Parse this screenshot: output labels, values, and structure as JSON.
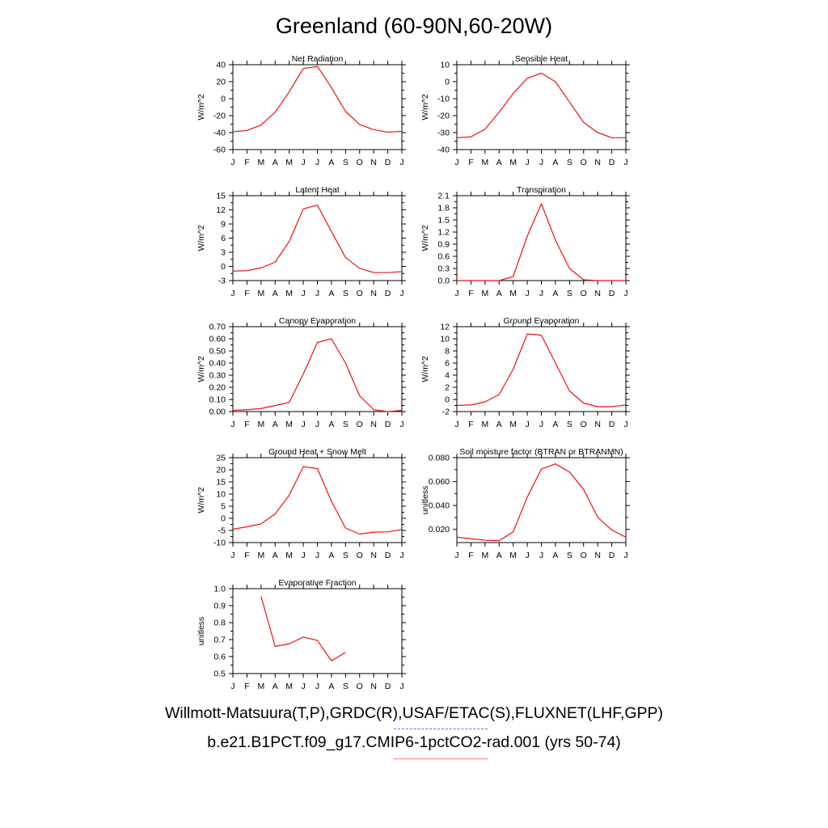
{
  "title": "Greenland (60-90N,60-20W)",
  "legend": {
    "observed": {
      "label": "Willmott-Matsuura(T,P),GRDC(R),USAF/ETAC(S),FLUXNET(LHF,GPP)",
      "color": "#5b5bea",
      "style": "dashed"
    },
    "model": {
      "label": "b.e21.B1PCT.f09_g17.CMIP6-1pctCO2-rad.001 (yrs 50-74)",
      "color": "#ee1111",
      "style": "solid"
    }
  },
  "chart_data": [
    {
      "type": "line",
      "title": "Net Radiation",
      "ylabel": "W/m^2",
      "ylim": [
        -60,
        40
      ],
      "yticks": [
        "40",
        "20",
        "0",
        "-20",
        "-40",
        "-60"
      ],
      "categories": [
        "J",
        "F",
        "M",
        "A",
        "M",
        "J",
        "J",
        "A",
        "S",
        "O",
        "N",
        "D",
        "J"
      ],
      "series": [
        {
          "values": [
            -39,
            -37.5,
            -31,
            -16,
            8,
            35.5,
            38,
            13,
            -15,
            -30.5,
            -36.5,
            -39.5,
            -38.5
          ],
          "color": "#ee1111"
        }
      ]
    },
    {
      "type": "line",
      "title": "Sensible Heat",
      "ylabel": "W/m^2",
      "ylim": [
        -40,
        10
      ],
      "yticks": [
        "10",
        "0",
        "-10",
        "-20",
        "-30",
        "-40"
      ],
      "categories": [
        "J",
        "F",
        "M",
        "A",
        "M",
        "J",
        "J",
        "A",
        "S",
        "O",
        "N",
        "D",
        "J"
      ],
      "series": [
        {
          "values": [
            -33,
            -32.5,
            -28,
            -18,
            -7,
            2,
            5,
            0,
            -12,
            -24,
            -30,
            -33,
            -33
          ],
          "color": "#ee1111"
        }
      ]
    },
    {
      "type": "line",
      "title": "Latent Heat",
      "ylabel": "W/m^2",
      "ylim": [
        -3,
        15
      ],
      "yticks": [
        "15",
        "12",
        "9",
        "6",
        "3",
        "0",
        "-3"
      ],
      "categories": [
        "J",
        "F",
        "M",
        "A",
        "M",
        "J",
        "J",
        "A",
        "S",
        "O",
        "N",
        "D",
        "J"
      ],
      "series": [
        {
          "values": [
            -1,
            -0.9,
            -0.3,
            0.9,
            5.3,
            12.2,
            13.0,
            7.4,
            1.9,
            -0.4,
            -1.3,
            -1.3,
            -1.1
          ],
          "color": "#ee1111"
        }
      ]
    },
    {
      "type": "line",
      "title": "Transpiration",
      "ylabel": "W/m^2",
      "ylim": [
        0,
        2.1
      ],
      "yticks": [
        "2.1",
        "1.8",
        "1.5",
        "1.2",
        "0.9",
        "0.6",
        "0.3",
        "0.0"
      ],
      "categories": [
        "J",
        "F",
        "M",
        "A",
        "M",
        "J",
        "J",
        "A",
        "S",
        "O",
        "N",
        "D",
        "J"
      ],
      "series": [
        {
          "values": [
            0,
            0,
            0,
            0,
            0.1,
            1.1,
            1.9,
            1.0,
            0.3,
            0.02,
            0,
            0,
            0
          ],
          "color": "#ee1111"
        }
      ]
    },
    {
      "type": "line",
      "title": "Canopy Evaporation",
      "ylabel": "W/m^2",
      "ylim": [
        0,
        0.7
      ],
      "yticks": [
        "0.70",
        "0.60",
        "0.50",
        "0.40",
        "0.30",
        "0.20",
        "0.10",
        "0.00"
      ],
      "categories": [
        "J",
        "F",
        "M",
        "A",
        "M",
        "J",
        "J",
        "A",
        "S",
        "O",
        "N",
        "D",
        "J"
      ],
      "series": [
        {
          "values": [
            0.01,
            0.015,
            0.025,
            0.05,
            0.075,
            0.31,
            0.57,
            0.6,
            0.4,
            0.13,
            0.015,
            0.0,
            0.01
          ],
          "color": "#ee1111"
        }
      ]
    },
    {
      "type": "line",
      "title": "Ground Evaporation",
      "ylabel": "W/m^2",
      "ylim": [
        -2,
        12
      ],
      "yticks": [
        "12",
        "10",
        "8",
        "6",
        "4",
        "2",
        "0",
        "-2"
      ],
      "categories": [
        "J",
        "F",
        "M",
        "A",
        "M",
        "J",
        "J",
        "A",
        "S",
        "O",
        "N",
        "D",
        "J"
      ],
      "series": [
        {
          "values": [
            -1,
            -0.9,
            -0.4,
            0.8,
            5.0,
            10.8,
            10.6,
            6.0,
            1.4,
            -0.6,
            -1.2,
            -1.2,
            -0.9
          ],
          "color": "#ee1111"
        }
      ]
    },
    {
      "type": "line",
      "title": "Ground Heat + Snow Melt",
      "ylabel": "W/m^2",
      "ylim": [
        -10,
        25
      ],
      "yticks": [
        "25",
        "20",
        "15",
        "10",
        "5",
        "0",
        "-5",
        "-10"
      ],
      "categories": [
        "J",
        "F",
        "M",
        "A",
        "M",
        "J",
        "J",
        "A",
        "S",
        "O",
        "N",
        "D",
        "J"
      ],
      "series": [
        {
          "values": [
            -4.5,
            -3.5,
            -2.3,
            1.8,
            9.5,
            21.3,
            20.5,
            7.0,
            -4.0,
            -6.5,
            -5.7,
            -5.6,
            -4.6
          ],
          "color": "#ee1111"
        }
      ]
    },
    {
      "type": "line",
      "title": "Soil moisture factor (BTRAN or BTRANMN)",
      "ylabel": "unitless",
      "ylim": [
        0.009,
        0.08
      ],
      "yticks": [
        "0.080",
        "0.060",
        "0.040",
        "0.020"
      ],
      "ytickvals": [
        0.08,
        0.06,
        0.04,
        0.02
      ],
      "categories": [
        "J",
        "F",
        "M",
        "A",
        "M",
        "J",
        "J",
        "A",
        "S",
        "O",
        "N",
        "D",
        "J"
      ],
      "series": [
        {
          "values": [
            0.0135,
            0.0122,
            0.011,
            0.0105,
            0.018,
            0.047,
            0.0705,
            0.0748,
            0.068,
            0.0535,
            0.0302,
            0.0195,
            0.0135
          ],
          "color": "#ee1111"
        }
      ]
    },
    {
      "type": "line",
      "title": "Evaporative Fraction",
      "ylabel": "unitless",
      "ylim": [
        0.5,
        1.0
      ],
      "yticks": [
        "1.0",
        "0.9",
        "0.8",
        "0.7",
        "0.6",
        "0.5"
      ],
      "categories": [
        "J",
        "F",
        "M",
        "A",
        "M",
        "J",
        "J",
        "A",
        "S",
        "O",
        "N",
        "D",
        "J"
      ],
      "series": [
        {
          "values": [
            null,
            null,
            0.955,
            0.66,
            0.675,
            0.715,
            0.695,
            0.575,
            0.625,
            null,
            null,
            null,
            null
          ],
          "color": "#ee1111"
        }
      ]
    }
  ]
}
